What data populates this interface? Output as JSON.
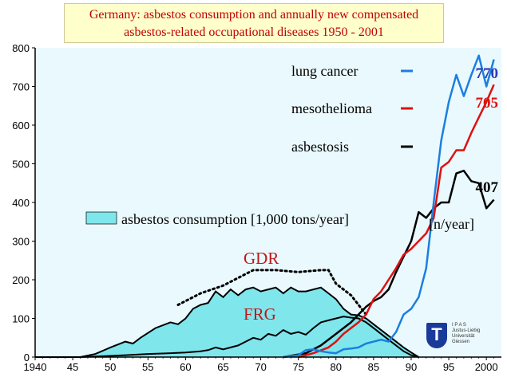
{
  "title": {
    "line1": "Germany: asbestos consumption and annually  new compensated",
    "line2": "asbestos-related occupational diseases  1950 - 2001"
  },
  "colors": {
    "background": "#eaf9fd",
    "consumption_fill": "#7fe6ec",
    "lung_cancer": "#1a7fe0",
    "mesothelioma": "#e01010",
    "asbestosis": "#000000",
    "title_text": "#c00000",
    "end_label_blue": "#2a3ab0",
    "end_label_red": "#e01010"
  },
  "chart_data": {
    "type": "area",
    "title": "Germany: asbestos consumption and annually  new compensated asbestos-related occupational diseases  1950 - 2001",
    "xlim": [
      1940,
      2002
    ],
    "ylim": [
      0,
      800
    ],
    "x_ticks": [
      1940,
      1945,
      1950,
      1955,
      1960,
      1965,
      1970,
      1975,
      1980,
      1985,
      1990,
      1995,
      2000
    ],
    "x_tick_labels": [
      "1940",
      "45",
      "50",
      "55",
      "60",
      "65",
      "70",
      "75",
      "80",
      "85",
      "90",
      "95",
      "2000"
    ],
    "y_ticks": [
      0,
      100,
      200,
      300,
      400,
      500,
      600,
      700,
      800
    ],
    "y_tick_labels": [
      "0",
      "100",
      "200",
      "300",
      "400",
      "500",
      "600",
      "700",
      "800"
    ],
    "grid": false,
    "legend_placement": "top-right",
    "unit_label": "[n/year]",
    "consumption": {
      "legend": "asbestos consumption [1,000 tons/year]",
      "total_label": "GDR",
      "frg_label": "FRG",
      "total": [
        [
          1940,
          0
        ],
        [
          1946,
          0
        ],
        [
          1948,
          8
        ],
        [
          1950,
          25
        ],
        [
          1952,
          40
        ],
        [
          1953,
          35
        ],
        [
          1954,
          50
        ],
        [
          1956,
          75
        ],
        [
          1958,
          90
        ],
        [
          1959,
          85
        ],
        [
          1960,
          100
        ],
        [
          1961,
          125
        ],
        [
          1962,
          135
        ],
        [
          1963,
          140
        ],
        [
          1964,
          170
        ],
        [
          1965,
          155
        ],
        [
          1966,
          175
        ],
        [
          1967,
          160
        ],
        [
          1968,
          175
        ],
        [
          1969,
          180
        ],
        [
          1970,
          170
        ],
        [
          1971,
          175
        ],
        [
          1972,
          180
        ],
        [
          1973,
          165
        ],
        [
          1974,
          180
        ],
        [
          1975,
          170
        ],
        [
          1976,
          170
        ],
        [
          1977,
          175
        ],
        [
          1978,
          180
        ],
        [
          1979,
          165
        ],
        [
          1980,
          150
        ],
        [
          1981,
          125
        ],
        [
          1982,
          110
        ],
        [
          1983,
          108
        ],
        [
          1984,
          100
        ],
        [
          1985,
          85
        ],
        [
          1986,
          70
        ],
        [
          1987,
          55
        ],
        [
          1988,
          40
        ],
        [
          1989,
          25
        ],
        [
          1990,
          12
        ],
        [
          1991,
          0
        ]
      ],
      "frg": [
        [
          1940,
          0
        ],
        [
          1946,
          0
        ],
        [
          1950,
          3
        ],
        [
          1952,
          5
        ],
        [
          1955,
          8
        ],
        [
          1958,
          10
        ],
        [
          1960,
          12
        ],
        [
          1962,
          15
        ],
        [
          1963,
          18
        ],
        [
          1964,
          25
        ],
        [
          1965,
          20
        ],
        [
          1966,
          25
        ],
        [
          1967,
          30
        ],
        [
          1968,
          40
        ],
        [
          1969,
          50
        ],
        [
          1970,
          45
        ],
        [
          1971,
          60
        ],
        [
          1972,
          55
        ],
        [
          1973,
          70
        ],
        [
          1974,
          60
        ],
        [
          1975,
          65
        ],
        [
          1976,
          58
        ],
        [
          1977,
          75
        ],
        [
          1978,
          90
        ],
        [
          1979,
          95
        ],
        [
          1980,
          100
        ],
        [
          1981,
          105
        ],
        [
          1982,
          102
        ],
        [
          1983,
          100
        ],
        [
          1984,
          90
        ],
        [
          1985,
          75
        ],
        [
          1986,
          60
        ],
        [
          1987,
          45
        ],
        [
          1988,
          30
        ],
        [
          1989,
          15
        ],
        [
          1990,
          5
        ],
        [
          1991,
          0
        ]
      ],
      "gdr_dotted": [
        [
          1959,
          135
        ],
        [
          1962,
          165
        ],
        [
          1965,
          185
        ],
        [
          1967,
          205
        ],
        [
          1969,
          225
        ],
        [
          1972,
          225
        ],
        [
          1975,
          220
        ],
        [
          1978,
          225
        ],
        [
          1979,
          225
        ],
        [
          1980,
          190
        ],
        [
          1982,
          160
        ],
        [
          1984,
          110
        ]
      ]
    },
    "series": [
      {
        "name": "lung cancer",
        "end_label": "770",
        "points": [
          [
            1973,
            0
          ],
          [
            1975,
            5
          ],
          [
            1976,
            18
          ],
          [
            1977,
            20
          ],
          [
            1978,
            15
          ],
          [
            1979,
            12
          ],
          [
            1980,
            10
          ],
          [
            1981,
            20
          ],
          [
            1982,
            22
          ],
          [
            1983,
            25
          ],
          [
            1984,
            35
          ],
          [
            1985,
            40
          ],
          [
            1986,
            45
          ],
          [
            1987,
            40
          ],
          [
            1988,
            65
          ],
          [
            1989,
            110
          ],
          [
            1990,
            125
          ],
          [
            1991,
            155
          ],
          [
            1992,
            230
          ],
          [
            1993,
            400
          ],
          [
            1994,
            560
          ],
          [
            1995,
            660
          ],
          [
            1996,
            730
          ],
          [
            1997,
            675
          ],
          [
            1998,
            730
          ],
          [
            1999,
            780
          ],
          [
            2000,
            700
          ],
          [
            2001,
            770
          ]
        ]
      },
      {
        "name": "mesothelioma",
        "end_label": "705",
        "points": [
          [
            1975,
            0
          ],
          [
            1977,
            10
          ],
          [
            1979,
            25
          ],
          [
            1980,
            40
          ],
          [
            1981,
            60
          ],
          [
            1982,
            75
          ],
          [
            1983,
            90
          ],
          [
            1984,
            110
          ],
          [
            1985,
            150
          ],
          [
            1986,
            170
          ],
          [
            1987,
            200
          ],
          [
            1988,
            230
          ],
          [
            1989,
            265
          ],
          [
            1990,
            280
          ],
          [
            1991,
            300
          ],
          [
            1992,
            320
          ],
          [
            1993,
            360
          ],
          [
            1994,
            490
          ],
          [
            1995,
            505
          ],
          [
            1996,
            535
          ],
          [
            1997,
            535
          ],
          [
            1998,
            580
          ],
          [
            1999,
            620
          ],
          [
            2000,
            660
          ],
          [
            2001,
            705
          ]
        ]
      },
      {
        "name": "asbestosis",
        "end_label": "407",
        "points": [
          [
            1973,
            0
          ],
          [
            1976,
            10
          ],
          [
            1978,
            30
          ],
          [
            1980,
            60
          ],
          [
            1982,
            90
          ],
          [
            1983,
            110
          ],
          [
            1984,
            130
          ],
          [
            1985,
            145
          ],
          [
            1986,
            155
          ],
          [
            1987,
            175
          ],
          [
            1988,
            220
          ],
          [
            1989,
            260
          ],
          [
            1990,
            300
          ],
          [
            1991,
            375
          ],
          [
            1992,
            360
          ],
          [
            1993,
            385
          ],
          [
            1994,
            400
          ],
          [
            1995,
            400
          ],
          [
            1996,
            475
          ],
          [
            1997,
            482
          ],
          [
            1998,
            455
          ],
          [
            1999,
            450
          ],
          [
            2000,
            385
          ],
          [
            2001,
            407
          ]
        ]
      }
    ]
  },
  "logo": {
    "letter": "T",
    "lines": [
      "I P A S",
      "Justus-Liebig",
      "Universität",
      "Giessen"
    ]
  }
}
